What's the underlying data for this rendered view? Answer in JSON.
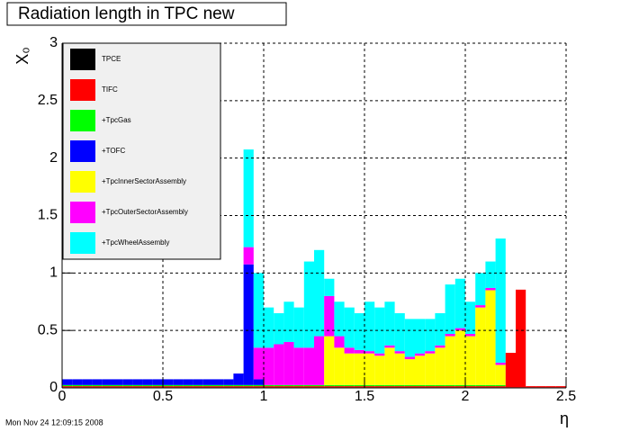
{
  "chart_data": {
    "type": "stacked-histogram",
    "title": "Radiation length in TPC new",
    "xlabel": "η",
    "ylabel": "X₀",
    "footer": "Mon Nov 24 12:09:15 2008",
    "xlim": [
      0,
      2.5
    ],
    "ylim": [
      0,
      3
    ],
    "xticks": [
      0,
      0.5,
      1,
      1.5,
      2,
      2.5
    ],
    "yticks": [
      0,
      0.5,
      1,
      1.5,
      2,
      2.5,
      3
    ],
    "grid": true,
    "legend": "top-left",
    "bins": [
      0,
      0.05,
      0.1,
      0.15,
      0.2,
      0.25,
      0.3,
      0.35,
      0.4,
      0.45,
      0.5,
      0.55,
      0.6,
      0.65,
      0.7,
      0.75,
      0.8,
      0.85,
      0.9,
      0.95,
      1,
      1.05,
      1.1,
      1.15,
      1.2,
      1.25,
      1.3,
      1.35,
      1.4,
      1.45,
      1.5,
      1.55,
      1.6,
      1.65,
      1.7,
      1.75,
      1.8,
      1.85,
      1.9,
      1.95,
      2,
      2.05,
      2.1,
      2.15,
      2.2,
      2.25,
      2.3,
      2.35,
      2.4,
      2.45,
      2.5
    ],
    "series": [
      {
        "name": "TPCE",
        "color": "#000000",
        "values": [
          0.005,
          0.005,
          0.005,
          0.005,
          0.005,
          0.005,
          0.005,
          0.005,
          0.005,
          0.005,
          0.005,
          0.005,
          0.005,
          0.005,
          0.005,
          0.005,
          0.005,
          0.005,
          0.005,
          0.005,
          0.005,
          0.005,
          0.005,
          0.005,
          0.005,
          0.005,
          0.005,
          0.005,
          0.005,
          0.005,
          0.005,
          0.005,
          0.005,
          0.005,
          0.005,
          0.005,
          0.005,
          0.005,
          0.005,
          0.005,
          0.005,
          0.005,
          0.005,
          0.005,
          0.005,
          0.005,
          0.005,
          0.005,
          0.005,
          0.005
        ]
      },
      {
        "name": "TIFC",
        "color": "#ff0000",
        "values": [
          0.01,
          0.01,
          0.01,
          0.01,
          0.01,
          0.01,
          0.01,
          0.01,
          0.01,
          0.01,
          0.01,
          0.01,
          0.01,
          0.01,
          0.01,
          0.01,
          0.01,
          0.01,
          0.01,
          0.01,
          0.01,
          0.01,
          0.01,
          0.01,
          0.01,
          0.01,
          0.01,
          0.01,
          0.01,
          0.01,
          0.01,
          0.01,
          0.01,
          0.01,
          0.01,
          0.01,
          0.01,
          0.01,
          0.01,
          0.01,
          0.01,
          0.01,
          0.01,
          0.01,
          0.3,
          0.85,
          0.01,
          0.01,
          0.01,
          0.01
        ]
      },
      {
        "name": "+TpcGas",
        "color": "#00ff00",
        "values": [
          0.01,
          0.01,
          0.01,
          0.01,
          0.01,
          0.01,
          0.01,
          0.01,
          0.01,
          0.01,
          0.01,
          0.01,
          0.01,
          0.01,
          0.01,
          0.01,
          0.01,
          0.01,
          0.01,
          0.01,
          0.01,
          0.01,
          0.01,
          0.01,
          0.01,
          0.01,
          0.01,
          0.01,
          0.01,
          0.01,
          0.01,
          0.01,
          0.01,
          0.01,
          0.01,
          0.01,
          0.01,
          0.01,
          0.01,
          0.01,
          0.01,
          0.01,
          0.01,
          0.01,
          0,
          0,
          0,
          0,
          0,
          0
        ]
      },
      {
        "name": "+TOFC",
        "color": "#0000ff",
        "values": [
          0.05,
          0.05,
          0.05,
          0.05,
          0.05,
          0.05,
          0.05,
          0.05,
          0.05,
          0.05,
          0.05,
          0.05,
          0.05,
          0.05,
          0.05,
          0.05,
          0.05,
          0.1,
          1.05,
          0.05,
          0,
          0,
          0,
          0,
          0,
          0,
          0,
          0,
          0,
          0,
          0,
          0,
          0,
          0,
          0,
          0,
          0,
          0,
          0,
          0,
          0,
          0,
          0,
          0,
          0,
          0,
          0,
          0,
          0,
          0
        ]
      },
      {
        "name": "+TpcInnerSectorAssembly",
        "color": "#ffff00",
        "values": [
          0,
          0,
          0,
          0,
          0,
          0,
          0,
          0,
          0,
          0,
          0,
          0,
          0,
          0,
          0,
          0,
          0,
          0,
          0,
          0,
          0,
          0,
          0,
          0,
          0,
          0,
          0.425,
          0.325,
          0.275,
          0.275,
          0.275,
          0.255,
          0.325,
          0.275,
          0.225,
          0.255,
          0.275,
          0.325,
          0.425,
          0.475,
          0.425,
          0.675,
          0.825,
          0.175,
          0,
          0,
          0,
          0,
          0,
          0
        ]
      },
      {
        "name": "+TpcOuterSectorAssembly",
        "color": "#ff00ff",
        "values": [
          0,
          0,
          0,
          0,
          0,
          0,
          0,
          0,
          0,
          0,
          0,
          0,
          0,
          0,
          0,
          0,
          0,
          0,
          0.15,
          0.275,
          0.325,
          0.355,
          0.375,
          0.325,
          0.325,
          0.425,
          0.35,
          0.1,
          0.05,
          0.03,
          0.02,
          0.02,
          0.02,
          0.02,
          0.02,
          0.02,
          0.02,
          0.02,
          0.02,
          0.02,
          0.02,
          0.02,
          0.02,
          0.02,
          0,
          0,
          0,
          0,
          0,
          0
        ]
      },
      {
        "name": "+TpcWheelAssembly",
        "color": "#00ffff",
        "values": [
          0,
          0,
          0,
          0,
          0,
          0,
          0,
          0,
          0,
          0,
          0,
          0,
          0,
          0,
          0,
          0,
          0,
          0,
          0.85,
          0.65,
          0.35,
          0.27,
          0.35,
          0.35,
          0.75,
          0.75,
          0.15,
          0.3,
          0.35,
          0.32,
          0.43,
          0.4,
          0.38,
          0.33,
          0.33,
          0.3,
          0.28,
          0.28,
          0.43,
          0.43,
          0.28,
          0.28,
          0.23,
          1.08,
          0,
          0,
          0,
          0,
          0,
          0
        ]
      }
    ]
  }
}
